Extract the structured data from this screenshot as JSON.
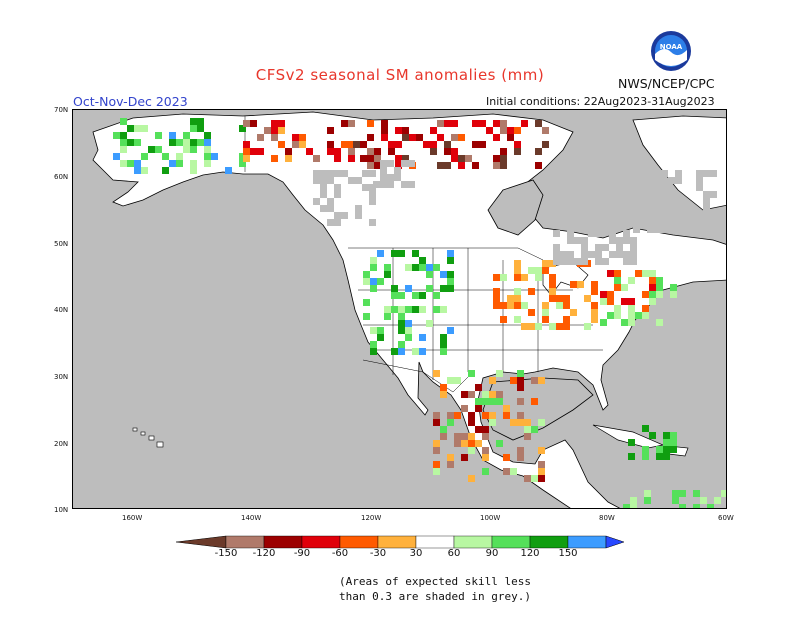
{
  "title": "CFSv2 seasonal SM anomalies (mm)",
  "season": "Oct-Nov-Dec 2023",
  "initial_conditions": "Initial conditions: 22Aug2023-31Aug2023",
  "agency": "NWS/NCEP/CPC",
  "logo_text": "NOAA",
  "lat_labels": [
    "70N",
    "60N",
    "50N",
    "40N",
    "30N",
    "20N",
    "10N"
  ],
  "lon_labels": [
    "160W",
    "140W",
    "120W",
    "100W",
    "80W",
    "60W"
  ],
  "colorbar": {
    "labels": [
      "-150",
      "-120",
      "-90",
      "-60",
      "-30",
      "30",
      "60",
      "90",
      "120",
      "150"
    ],
    "colors": [
      "#6b3a2a",
      "#b07a6a",
      "#9c0000",
      "#e0000a",
      "#ff5a00",
      "#ffb13c",
      "#ffffff",
      "#b8f7a2",
      "#55e05a",
      "#109e10",
      "#3c9cff",
      "#2848ff"
    ]
  },
  "note_line1": "(Areas of expected skill less",
  "note_line2": "than 0.3 are shaded in grey.)",
  "colors": {
    "ocean": "#bdbdbd",
    "land": "#ffffff",
    "title": "#e8372c",
    "season": "#3344cc"
  }
}
